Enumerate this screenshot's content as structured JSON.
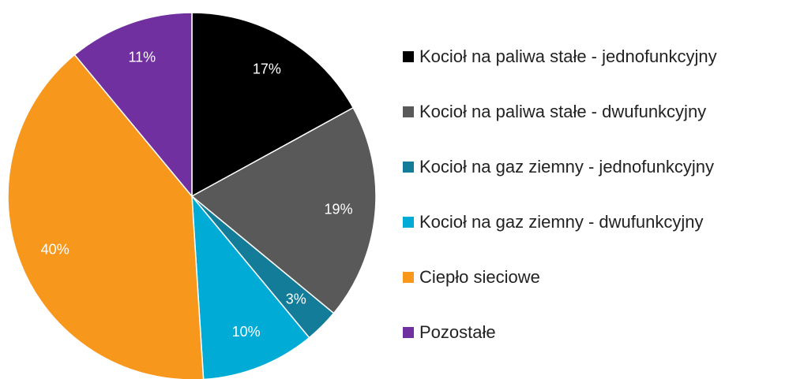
{
  "chart_data": {
    "type": "pie",
    "categories": [
      "Kocioł na paliwa stałe - jednofunkcyjny",
      "Kocioł na paliwa stałe - dwufunkcyjny",
      "Kocioł na gaz ziemny - jednofunkcyjny",
      "Kocioł na gaz ziemny - dwufunkcyjny",
      "Ciepło sieciowe",
      "Pozostałe"
    ],
    "values": [
      17,
      19,
      3,
      10,
      40,
      11
    ],
    "value_labels": [
      "17%",
      "19%",
      "3%",
      "10%",
      "40%",
      "11%"
    ],
    "colors": [
      "#000000",
      "#595959",
      "#127c99",
      "#00acd6",
      "#f7981d",
      "#7030a0"
    ],
    "legend": "right"
  }
}
